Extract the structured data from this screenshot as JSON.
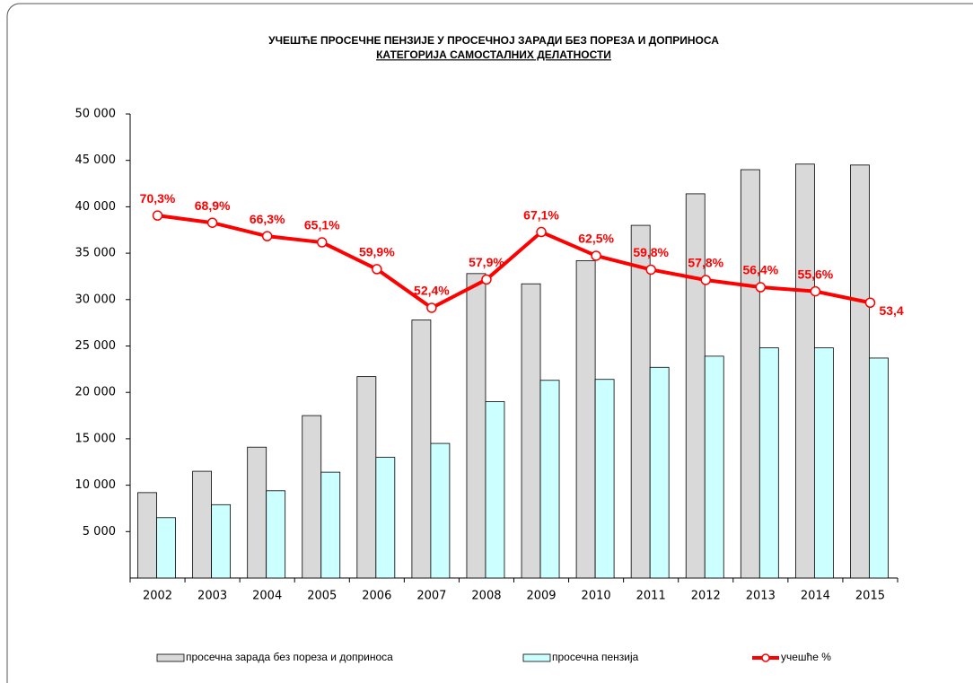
{
  "chart_data": {
    "type": "bar",
    "title": "УЧЕШЋЕ ПРОСЕЧНЕ ПЕНЗИЈЕ У ПРОСЕЧНОЈ ЗАРАДИ БЕЗ ПОРЕЗА И ДОПРИНОСА",
    "subtitle": "КАТЕГОРИЈА САМОСТАЛНИХ ДЕЛАТНОСТИ",
    "categories": [
      "2002",
      "2003",
      "2004",
      "2005",
      "2006",
      "2007",
      "2008",
      "2009",
      "2010",
      "2011",
      "2012",
      "2013",
      "2014",
      "2015"
    ],
    "series": [
      {
        "name": "просечна зарада без пореза и доприноса",
        "type": "bar",
        "color": "#d9d9d9",
        "values": [
          9200,
          11500,
          14100,
          17500,
          21700,
          27800,
          32800,
          31700,
          34200,
          38000,
          41400,
          44000,
          44600,
          44500
        ]
      },
      {
        "name": "просечна пензија",
        "type": "bar",
        "color": "#ccffff",
        "values": [
          6500,
          7900,
          9400,
          11400,
          13000,
          14500,
          19000,
          21300,
          21400,
          22700,
          23900,
          24800,
          24800,
          23700
        ]
      },
      {
        "name": "учешће %",
        "type": "line",
        "axis": "y2",
        "color": "#ff0000",
        "values": [
          70.3,
          68.9,
          66.3,
          65.1,
          59.9,
          52.4,
          57.9,
          67.1,
          62.5,
          59.8,
          57.8,
          56.4,
          55.6,
          53.4
        ],
        "value_labels": [
          "70,3%",
          "68,9%",
          "66,3%",
          "65,1%",
          "59,9%",
          "52,4%",
          "57,9%",
          "67,1%",
          "62,5%",
          "59,8%",
          "57,8%",
          "56,4%",
          "55,6%",
          "53,4"
        ]
      }
    ],
    "ylim": [
      0,
      50000
    ],
    "yticks": [
      {
        "value": 5000,
        "label": "5 000"
      },
      {
        "value": 10000,
        "label": "10 000"
      },
      {
        "value": 15000,
        "label": "15 000"
      },
      {
        "value": 20000,
        "label": "20 000"
      },
      {
        "value": 25000,
        "label": "25 000"
      },
      {
        "value": 30000,
        "label": "30 000"
      },
      {
        "value": 35000,
        "label": "35 000"
      },
      {
        "value": 40000,
        "label": "40 000"
      },
      {
        "value": 45000,
        "label": "45 000"
      },
      {
        "value": 50000,
        "label": "50 000"
      }
    ],
    "y2lim": [
      0,
      90
    ],
    "legend": "bottom"
  }
}
